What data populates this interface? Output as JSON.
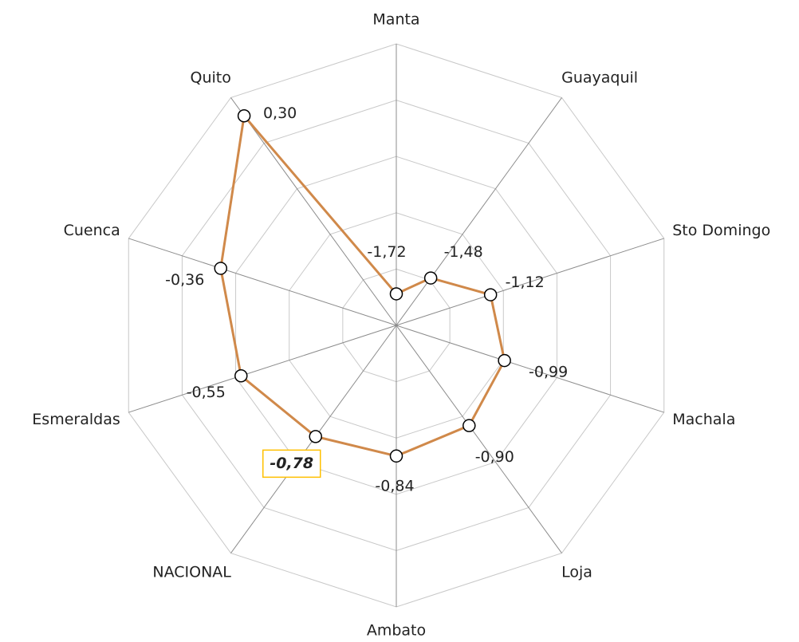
{
  "chart_data": {
    "type": "radar",
    "categories": [
      "Manta",
      "Guayaquil",
      "Sto Domingo",
      "Machala",
      "Loja",
      "Ambato",
      "NACIONAL",
      "Esmeraldas",
      "Cuenca",
      "Quito"
    ],
    "series": [
      {
        "color": "#d0894a",
        "values": [
          -1.72,
          -1.48,
          -1.12,
          -0.99,
          -0.9,
          -0.84,
          -0.78,
          -0.55,
          -0.36,
          0.3
        ],
        "value_labels": [
          "-1,72",
          "-1,48",
          "-1,12",
          "-0,99",
          "-0,90",
          "-0,84",
          "-0,78",
          "-0,55",
          "-0,36",
          "0,30"
        ]
      }
    ],
    "rlim": [
      -2,
      0.5
    ],
    "rticks": [
      -2,
      -1.5,
      -1,
      -0.5,
      0,
      0.5
    ],
    "grid": true,
    "highlight": {
      "index": 6,
      "border_color": "#ffc000"
    }
  }
}
